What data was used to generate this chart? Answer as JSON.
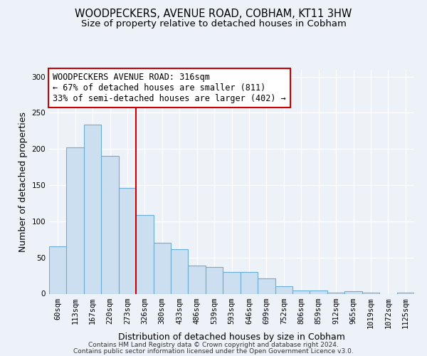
{
  "title": "WOODPECKERS, AVENUE ROAD, COBHAM, KT11 3HW",
  "subtitle": "Size of property relative to detached houses in Cobham",
  "xlabel": "Distribution of detached houses by size in Cobham",
  "ylabel": "Number of detached properties",
  "bar_labels": [
    "60sqm",
    "113sqm",
    "167sqm",
    "220sqm",
    "273sqm",
    "326sqm",
    "380sqm",
    "433sqm",
    "486sqm",
    "539sqm",
    "593sqm",
    "646sqm",
    "699sqm",
    "752sqm",
    "806sqm",
    "859sqm",
    "912sqm",
    "965sqm",
    "1019sqm",
    "1072sqm",
    "1125sqm"
  ],
  "bar_values": [
    65,
    202,
    234,
    190,
    146,
    109,
    70,
    62,
    39,
    37,
    30,
    30,
    21,
    10,
    4,
    4,
    1,
    3,
    1,
    0,
    1
  ],
  "bar_color": "#ccdff0",
  "bar_edge_color": "#6aaed6",
  "vline_color": "#cc0000",
  "annotation_text": "WOODPECKERS AVENUE ROAD: 316sqm\n← 67% of detached houses are smaller (811)\n33% of semi-detached houses are larger (402) →",
  "annotation_box_color": "#ffffff",
  "annotation_box_edge_color": "#cc0000",
  "ylim": [
    0,
    310
  ],
  "yticks": [
    0,
    50,
    100,
    150,
    200,
    250,
    300
  ],
  "footer1": "Contains HM Land Registry data © Crown copyright and database right 2024.",
  "footer2": "Contains public sector information licensed under the Open Government Licence v3.0.",
  "background_color": "#edf2f9",
  "grid_color": "#ffffff",
  "title_fontsize": 10.5,
  "subtitle_fontsize": 9.5,
  "axis_label_fontsize": 9,
  "tick_fontsize": 7.5,
  "annotation_fontsize": 8.5,
  "footer_fontsize": 6.5
}
